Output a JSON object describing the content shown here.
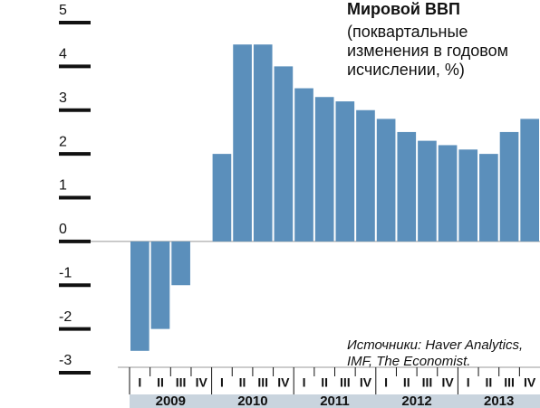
{
  "chart_data": {
    "type": "bar",
    "title": "Мировой ВВП",
    "subtitle_lines": [
      "(поквартальные",
      "изменения в годовом",
      "исчислении, %)"
    ],
    "source_lines": [
      "Источники: Haver Analytics,",
      "IMF, The Economist."
    ],
    "categories": [
      "I",
      "II",
      "III",
      "IV",
      "I",
      "II",
      "III",
      "IV",
      "I",
      "II",
      "III",
      "IV",
      "I",
      "II",
      "III",
      "IV",
      "I",
      "II",
      "III",
      "IV"
    ],
    "years": [
      "2009",
      "2010",
      "2011",
      "2012",
      "2013"
    ],
    "values": [
      -2.5,
      -2.0,
      -1.0,
      0,
      2.0,
      4.5,
      4.5,
      4.0,
      3.5,
      3.3,
      3.2,
      3.0,
      2.8,
      2.5,
      2.3,
      2.2,
      2.1,
      2.0,
      2.5,
      2.8
    ],
    "color": "#5b8fbb",
    "ylim": [
      -3,
      5
    ],
    "yticks": [
      -3,
      -2,
      -1,
      0,
      1,
      2,
      3,
      4,
      5
    ]
  }
}
